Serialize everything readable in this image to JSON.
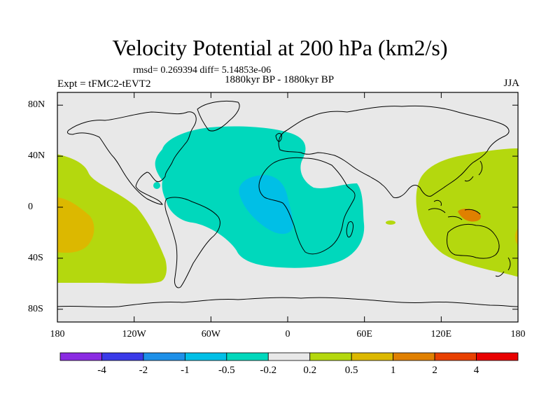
{
  "title": "Velocity Potential at 200 hPa (km2/s)",
  "stats_line": "rmsd= 0.269394 diff= 5.14853e-06",
  "left_label": "Expt = tFMC2-tEVT2",
  "center_label": "1880kyr BP - 1880kyr BP",
  "right_label": "JJA",
  "map": {
    "lon_range": [
      -180,
      180
    ],
    "lat_range": [
      -90,
      90
    ],
    "projection": "cylindrical-equidistant",
    "background_color": "#e8e8e8",
    "coastline_color": "#000000",
    "lon_ticks": [
      {
        "value": -180,
        "label": "180"
      },
      {
        "value": -120,
        "label": "120W"
      },
      {
        "value": -60,
        "label": "60W"
      },
      {
        "value": 0,
        "label": "0"
      },
      {
        "value": 60,
        "label": "60E"
      },
      {
        "value": 120,
        "label": "120E"
      },
      {
        "value": 180,
        "label": "180"
      }
    ],
    "lat_ticks": [
      {
        "value": 80,
        "label": "80N"
      },
      {
        "value": 40,
        "label": "40N"
      },
      {
        "value": 0,
        "label": "0"
      },
      {
        "value": -40,
        "label": "40S"
      },
      {
        "value": -80,
        "label": "80S"
      }
    ]
  },
  "colorbar": {
    "colors": [
      "#8a2be2",
      "#3a3ae8",
      "#1e90e8",
      "#00bfe6",
      "#00d8bc",
      "#e8e8e8",
      "#b4d80e",
      "#dcb800",
      "#e08000",
      "#e84000",
      "#e80000"
    ],
    "labels": [
      "-4",
      "-2",
      "-1",
      "-0.5",
      "-0.2",
      "0.2",
      "0.5",
      "1",
      "2",
      "4"
    ]
  },
  "contour_fields": [
    {
      "name": "atlantic-negative-region",
      "level": "-0.5 to -0.2",
      "color": "#00d8bc"
    },
    {
      "name": "africa-negative-core",
      "level": "-1 to -0.5",
      "color": "#00bfe6"
    },
    {
      "name": "pacific-positive-region",
      "level": "0.2 to 0.5",
      "color": "#b4d80e"
    },
    {
      "name": "positive-core",
      "level": "0.5 to 1",
      "color": "#dcb800"
    },
    {
      "name": "positive-max-core",
      "level": "1 to 2",
      "color": "#e08000"
    }
  ]
}
